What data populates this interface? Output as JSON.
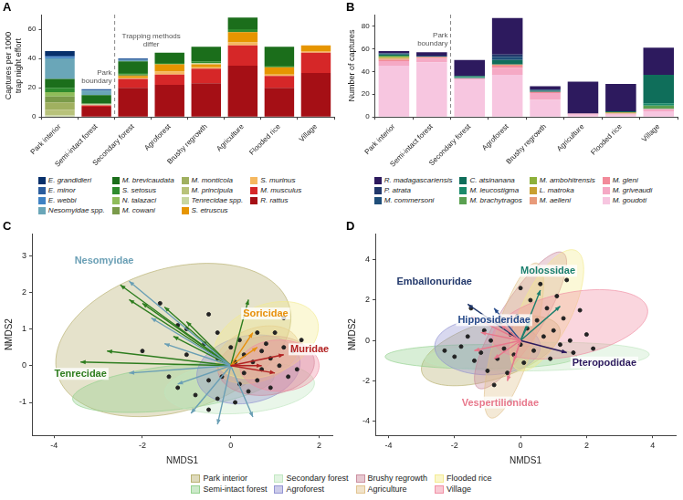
{
  "chart_data": [
    {
      "type": "bar",
      "panel": "A",
      "stacked": true,
      "grid": false,
      "legend": "bottom",
      "y_label": "Captures per 1000 trap night effort",
      "categories": [
        "Park interior",
        "Semi-intact forest",
        "Secondary forest",
        "Agroforest",
        "Brushy regrowth",
        "Agriculture",
        "Flooded rice",
        "Village"
      ],
      "ylim": [
        0,
        70
      ],
      "yticks": [
        0,
        20,
        40,
        60
      ],
      "annotations": [
        {
          "text": "Park boundary",
          "after": "Semi-intact forest"
        },
        {
          "text": "Trapping methods differ"
        }
      ],
      "series": [
        {
          "name": "E. grandidieri",
          "color": "#08306b",
          "values": [
            3,
            0,
            0,
            0,
            0,
            0,
            0,
            0
          ]
        },
        {
          "name": "E. minor",
          "color": "#2b5d9e",
          "values": [
            1,
            1,
            1,
            0,
            0,
            0,
            0,
            0
          ]
        },
        {
          "name": "E. webbi",
          "color": "#3f82c4",
          "values": [
            1,
            0,
            0,
            0,
            0,
            0,
            0,
            0
          ]
        },
        {
          "name": "Nesomyidae spp.",
          "color": "#6aa6b8",
          "values": [
            14,
            3,
            1,
            0,
            0,
            0,
            0,
            0
          ]
        },
        {
          "name": "M. brevicaudata",
          "color": "#1b6e1b",
          "values": [
            6,
            6,
            8,
            7,
            10,
            8,
            13,
            0
          ]
        },
        {
          "name": "S. setosus",
          "color": "#2e8b2e",
          "values": [
            3,
            0,
            1,
            1,
            1,
            2,
            1,
            0
          ]
        },
        {
          "name": "N. talazaci",
          "color": "#8fbc5a",
          "values": [
            3,
            0,
            0,
            0,
            0,
            0,
            0,
            0
          ]
        },
        {
          "name": "M. cowani",
          "color": "#7a9a4a",
          "values": [
            4,
            0,
            1,
            0,
            0,
            0,
            0,
            0
          ]
        },
        {
          "name": "M. monticola",
          "color": "#a0b060",
          "values": [
            5,
            0,
            0,
            0,
            0,
            0,
            0,
            0
          ]
        },
        {
          "name": "M. principula",
          "color": "#b8c27a",
          "values": [
            4,
            0,
            0,
            0,
            0,
            0,
            0,
            0
          ]
        },
        {
          "name": "Tenrecidae spp.",
          "color": "#c8d6a0",
          "values": [
            1,
            1,
            0,
            0,
            1,
            0,
            0,
            0
          ]
        },
        {
          "name": "S. etruscus",
          "color": "#e69500",
          "values": [
            0,
            0,
            1,
            5,
            2,
            7,
            5,
            4
          ]
        },
        {
          "name": "S. murinus",
          "color": "#f5b860",
          "values": [
            0,
            0,
            1,
            2,
            1,
            2,
            1,
            1
          ]
        },
        {
          "name": "M. musculus",
          "color": "#d62728",
          "values": [
            0,
            1,
            6,
            7,
            10,
            14,
            8,
            14
          ]
        },
        {
          "name": "R. rattus",
          "color": "#a50f15",
          "values": [
            0,
            7,
            20,
            22,
            23,
            35,
            20,
            30
          ]
        }
      ]
    },
    {
      "type": "bar",
      "panel": "B",
      "stacked": true,
      "grid": false,
      "legend": "bottom",
      "y_label": "Number of captures",
      "categories": [
        "Park interior",
        "Semi-intact forest",
        "Secondary forest",
        "Agroforest",
        "Brushy regrowth",
        "Agriculture",
        "Flooded rice",
        "Village"
      ],
      "ylim": [
        0,
        90
      ],
      "yticks": [
        0,
        20,
        40,
        60,
        80
      ],
      "annotations": [
        {
          "text": "Park boundary",
          "after": "Semi-intact forest"
        }
      ],
      "series": [
        {
          "name": "R. madagascariensis",
          "color": "#2d1a5e",
          "values": [
            2,
            3,
            14,
            32,
            3,
            28,
            24,
            24
          ]
        },
        {
          "name": "P. atrata",
          "color": "#22386b",
          "values": [
            0,
            0,
            0,
            2,
            0,
            0,
            0,
            0
          ]
        },
        {
          "name": "M. commersoni",
          "color": "#1f4e79",
          "values": [
            1,
            1,
            0,
            3,
            1,
            0,
            0,
            0
          ]
        },
        {
          "name": "C. atsinanana",
          "color": "#0f6e5a",
          "values": [
            1,
            0,
            1,
            4,
            1,
            0,
            1,
            25
          ]
        },
        {
          "name": "M. leucostigma",
          "color": "#1a8a6a",
          "values": [
            0,
            0,
            1,
            0,
            0,
            0,
            0,
            2
          ]
        },
        {
          "name": "M. brachytragos",
          "color": "#5aa050",
          "values": [
            1,
            0,
            0,
            0,
            0,
            0,
            0,
            3
          ]
        },
        {
          "name": "M. ambohitrensis",
          "color": "#8db03a",
          "values": [
            1,
            0,
            0,
            0,
            0,
            0,
            0,
            0
          ]
        },
        {
          "name": "L. matroka",
          "color": "#c8a030",
          "values": [
            1,
            0,
            0,
            0,
            0,
            0,
            1,
            0
          ]
        },
        {
          "name": "M. aelleni",
          "color": "#e89a7a",
          "values": [
            1,
            1,
            0,
            1,
            0,
            0,
            0,
            0
          ]
        },
        {
          "name": "M. gleni",
          "color": "#f28a9a",
          "values": [
            1,
            1,
            0,
            2,
            1,
            0,
            0,
            0
          ]
        },
        {
          "name": "M. griveaudi",
          "color": "#f5a9c5",
          "values": [
            4,
            3,
            1,
            6,
            6,
            1,
            1,
            2
          ]
        },
        {
          "name": "M. goudoti",
          "color": "#f7c6e0",
          "values": [
            45,
            48,
            33,
            37,
            15,
            2,
            2,
            5
          ]
        }
      ]
    },
    {
      "type": "scatter",
      "panel": "C",
      "grid": false,
      "legend": "bottom",
      "x_label": "NMDS1",
      "y_label": "NMDS2",
      "xlim": [
        -4.5,
        2.3
      ],
      "xticks": [
        -4,
        -2,
        0,
        2
      ],
      "ylim": [
        -1.9,
        3.6
      ],
      "yticks": [
        -1,
        0,
        1,
        2,
        3
      ],
      "points": {
        "color": "#222222",
        "x": [
          -1.6,
          -1.2,
          -1.0,
          -0.5,
          -0.3,
          -0.6,
          -1.0,
          -0.3,
          -0.5,
          -1.2,
          -0.8,
          -0.3,
          -0.5,
          0.1,
          0.2,
          0.3,
          0.5,
          0.7,
          0.8,
          1.0,
          1.2,
          0.9,
          1.1,
          1.3,
          0.6,
          0.4,
          0.0,
          0.2,
          0.6,
          1.4,
          1.6,
          0.9,
          0.3,
          -0.2,
          0.1,
          1.2,
          0.7,
          1.5,
          -2.0,
          -1.4
        ],
        "y": [
          1.7,
          1.1,
          1.0,
          1.4,
          0.9,
          0.6,
          0.3,
          0.2,
          -0.4,
          -0.6,
          -0.8,
          -0.9,
          -1.2,
          -1.0,
          -0.5,
          -0.2,
          0.1,
          0.4,
          0.6,
          0.9,
          1.3,
          0.2,
          0.0,
          -0.3,
          -0.4,
          -0.7,
          0.5,
          0.7,
          0.9,
          0.4,
          0.7,
          -0.6,
          0.3,
          -0.3,
          0.1,
          0.5,
          -0.1,
          -0.1,
          0.4,
          -0.3
        ]
      },
      "series": [
        {
          "name": "Park interior",
          "color": "#b5ad6a",
          "center": [
            -1.3,
            0.7
          ],
          "radii": [
            2.8,
            1.9
          ],
          "angle": 25
        },
        {
          "name": "Semi-intact forest",
          "color": "#8fcf8a",
          "center": [
            -1.3,
            -0.6
          ],
          "radii": [
            2.3,
            0.6
          ],
          "angle": 8
        },
        {
          "name": "Secondary forest",
          "color": "#bfe6bf",
          "center": [
            0.2,
            -0.6
          ],
          "radii": [
            1.7,
            0.7
          ],
          "angle": 5
        },
        {
          "name": "Agroforest",
          "color": "#8e8fd0",
          "center": [
            0.4,
            -0.1
          ],
          "radii": [
            1.2,
            0.9
          ],
          "angle": 20
        },
        {
          "name": "Brushy regrowth",
          "color": "#c9889a",
          "center": [
            0.8,
            0.0
          ],
          "radii": [
            1.1,
            0.8
          ],
          "angle": 10
        },
        {
          "name": "Agriculture",
          "color": "#e0c08a",
          "center": [
            0.6,
            0.3
          ],
          "radii": [
            1.0,
            0.7
          ],
          "angle": 30
        },
        {
          "name": "Flooded rice",
          "color": "#f3ea8c",
          "center": [
            0.8,
            0.7
          ],
          "radii": [
            1.3,
            0.9
          ],
          "angle": 35
        },
        {
          "name": "Village",
          "color": "#f08aa0",
          "center": [
            1.1,
            0.0
          ],
          "radii": [
            0.9,
            0.7
          ],
          "angle": 0
        }
      ],
      "arrows": [
        {
          "name": "Tenrecidae",
          "color": "#2e7d1f",
          "x": [
            -2.5,
            -2.3,
            -2.0,
            -1.5,
            -1.0,
            -3.4,
            -2.8,
            -1.3,
            0.4
          ],
          "y": [
            2.2,
            1.8,
            1.7,
            1.6,
            1.2,
            0.1,
            0.4,
            0.8,
            1.8
          ]
        },
        {
          "name": "Nesomyidae",
          "color": "#6a9fb5",
          "x": [
            -2.3,
            -1.8,
            -1.5,
            -2.3,
            -1.2,
            -0.3,
            -0.9,
            0.5
          ],
          "y": [
            2.3,
            1.3,
            0.6,
            -0.2,
            -0.5,
            -1.6,
            -1.3,
            -1.4
          ]
        },
        {
          "name": "Soricidae",
          "color": "#e8900c",
          "x": [
            0.6,
            0.5
          ],
          "y": [
            0.5,
            0.9
          ]
        },
        {
          "name": "Muridae",
          "color": "#b22222",
          "x": [
            1.2,
            0.7,
            1.0
          ],
          "y": [
            0.3,
            0.0,
            -0.2
          ]
        }
      ]
    },
    {
      "type": "scatter",
      "panel": "D",
      "grid": false,
      "legend": "bottom",
      "x_label": "NMDS1",
      "y_label": "NMDS2",
      "xlim": [
        -4.4,
        4.7
      ],
      "xticks": [
        -4,
        -2,
        0,
        2,
        4
      ],
      "ylim": [
        -4.7,
        5.3
      ],
      "yticks": [
        -4,
        -2,
        0,
        2,
        4
      ],
      "points": {
        "color": "#222222",
        "x": [
          -2.0,
          -1.8,
          -1.6,
          -1.4,
          -1.2,
          -1.1,
          -1.0,
          -0.9,
          -0.8,
          -0.7,
          -0.6,
          -0.5,
          -0.4,
          -0.3,
          -0.2,
          -0.1,
          0.0,
          0.1,
          0.2,
          0.3,
          0.4,
          0.5,
          0.6,
          0.7,
          0.8,
          0.9,
          1.0,
          1.1,
          1.2,
          1.3,
          1.4,
          1.5,
          1.6,
          1.8,
          2.0,
          2.2,
          -0.3,
          -1.5,
          0.0,
          -2.3
        ],
        "y": [
          -0.8,
          -0.3,
          0.2,
          -1.0,
          -0.6,
          0.5,
          -1.5,
          0.0,
          -2.2,
          -0.9,
          0.9,
          -0.4,
          -1.6,
          0.3,
          -0.7,
          1.2,
          -0.2,
          -1.1,
          0.6,
          2.0,
          -0.5,
          1.0,
          2.8,
          0.2,
          1.6,
          -0.9,
          0.5,
          2.2,
          -0.2,
          1.1,
          3.0,
          0.0,
          -0.6,
          1.5,
          0.3,
          -0.4,
          -3.0,
          1.6,
          2.6,
          -0.5
        ]
      },
      "series": [
        {
          "name": "Park interior",
          "color": "#b5ad6a",
          "center": [
            -0.9,
            -0.5
          ],
          "radii": [
            2.4,
            1.3
          ],
          "angle": 35
        },
        {
          "name": "Semi-intact forest",
          "color": "#8fcf8a",
          "center": [
            -1.2,
            -0.8
          ],
          "radii": [
            2.9,
            0.6
          ],
          "angle": 0
        },
        {
          "name": "Secondary forest",
          "color": "#bfe6bf",
          "center": [
            0.5,
            -0.8
          ],
          "radii": [
            3.4,
            0.7
          ],
          "angle": 2
        },
        {
          "name": "Agroforest",
          "color": "#8e8fd0",
          "center": [
            -1.0,
            -0.3
          ],
          "radii": [
            1.6,
            1.4
          ],
          "angle": 0
        },
        {
          "name": "Brushy regrowth",
          "color": "#c9889a",
          "center": [
            0.0,
            1.0
          ],
          "radii": [
            3.6,
            0.7
          ],
          "angle": 70
        },
        {
          "name": "Agriculture",
          "color": "#e0c08a",
          "center": [
            -0.2,
            0.0
          ],
          "radii": [
            3.9,
            0.6
          ],
          "angle": 80
        },
        {
          "name": "Flooded rice",
          "color": "#f3ea8c",
          "center": [
            0.8,
            1.5
          ],
          "radii": [
            3.1,
            0.8
          ],
          "angle": 75
        },
        {
          "name": "Village",
          "color": "#f08aa0",
          "center": [
            1.5,
            0.8
          ],
          "radii": [
            2.5,
            1.5
          ],
          "angle": 25
        }
      ],
      "arrows": [
        {
          "name": "Emballonuridae",
          "color": "#22386b",
          "x": [
            -1.6
          ],
          "y": [
            1.8
          ]
        },
        {
          "name": "Hipposideridae",
          "color": "#274b8a",
          "x": [
            -0.8
          ],
          "y": [
            1.6
          ]
        },
        {
          "name": "Molossidae",
          "color": "#1a7f6e",
          "x": [
            0.6,
            1.2,
            0.3
          ],
          "y": [
            2.5,
            1.7,
            1.0
          ]
        },
        {
          "name": "Pteropodidae",
          "color": "#2d1a5e",
          "x": [
            1.4
          ],
          "y": [
            -0.6
          ]
        },
        {
          "name": "Vespertilionidae",
          "color": "#e8788c",
          "x": [
            -1.5,
            -1.2,
            -1.4,
            -0.8,
            -0.4,
            -0.2,
            -0.6
          ],
          "y": [
            1.2,
            0.4,
            -0.5,
            -0.9,
            -2.0,
            -1.0,
            0.8
          ]
        }
      ]
    }
  ]
}
